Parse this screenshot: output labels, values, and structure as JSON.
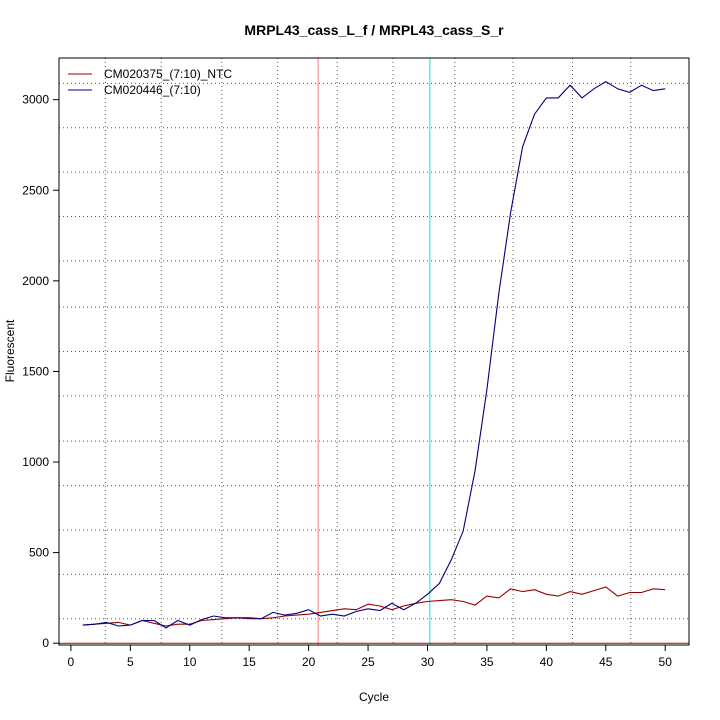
{
  "chart_data": {
    "type": "line",
    "title": "MRPL43_cass_L_f / MRPL43_cass_S_r",
    "xlabel": "Cycle",
    "ylabel": "Fluorescent",
    "xlim": [
      -1,
      52
    ],
    "ylim": [
      -10,
      3230
    ],
    "x_ticks": [
      0,
      5,
      10,
      15,
      20,
      25,
      30,
      35,
      40,
      45,
      50
    ],
    "y_ticks": [
      0,
      500,
      1000,
      1500,
      2000,
      2500,
      3000
    ],
    "grid": true,
    "grid_vertical": [
      2.9,
      7.6,
      12.7,
      17.4,
      22.4,
      27.1,
      32.3,
      37.2,
      42.2,
      47.1
    ],
    "grid_horizontal": [
      135,
      380,
      625,
      870,
      1115,
      1365,
      1610,
      1855,
      2110,
      2355,
      2600,
      2845,
      3090
    ],
    "legend_position": "top-left",
    "threshold_y": 0,
    "threshold_color": "#cc0000",
    "markers": [
      {
        "x": 20.8,
        "color": "#ff7777"
      },
      {
        "x": 30.2,
        "color": "#22dddd"
      }
    ],
    "x": [
      1,
      2,
      3,
      4,
      5,
      6,
      7,
      8,
      9,
      10,
      11,
      12,
      13,
      14,
      15,
      16,
      17,
      18,
      19,
      20,
      21,
      22,
      23,
      24,
      25,
      26,
      27,
      28,
      29,
      30,
      31,
      32,
      33,
      34,
      35,
      36,
      37,
      38,
      39,
      40,
      41,
      42,
      43,
      44,
      45,
      46,
      47,
      48,
      49,
      50
    ],
    "series": [
      {
        "name": "CM020375_(7:10)_NTC",
        "color": "#990000",
        "values": [
          100,
          105,
          110,
          115,
          100,
          125,
          110,
          95,
          105,
          105,
          125,
          130,
          135,
          140,
          135,
          135,
          140,
          150,
          155,
          160,
          170,
          180,
          190,
          185,
          215,
          205,
          185,
          205,
          220,
          230,
          235,
          240,
          230,
          210,
          260,
          250,
          300,
          285,
          295,
          270,
          260,
          285,
          270,
          290,
          310,
          260,
          280,
          280,
          300,
          295
        ]
      },
      {
        "name": "CM020446_(7:10)",
        "color": "#000080",
        "values": [
          100,
          105,
          115,
          95,
          100,
          125,
          125,
          85,
          125,
          100,
          130,
          150,
          140,
          140,
          140,
          135,
          170,
          155,
          165,
          185,
          150,
          160,
          150,
          175,
          190,
          180,
          220,
          185,
          220,
          270,
          330,
          460,
          620,
          950,
          1400,
          1930,
          2380,
          2740,
          2920,
          3010,
          3010,
          3080,
          3010,
          3060,
          3100,
          3060,
          3040,
          3080,
          3050,
          3060
        ]
      }
    ]
  }
}
